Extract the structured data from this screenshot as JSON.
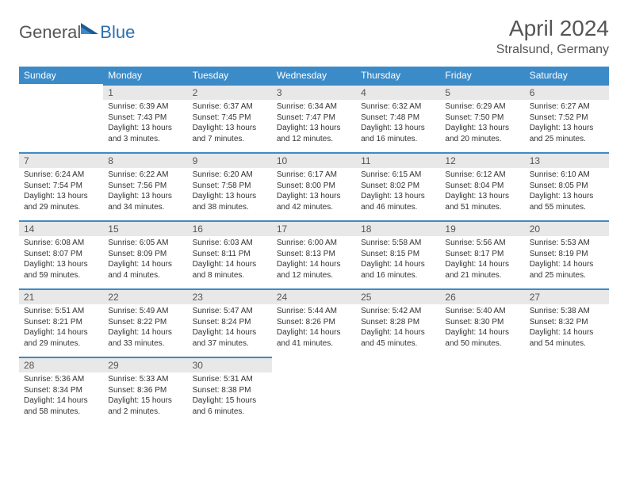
{
  "brand": {
    "part1": "General",
    "part2": "Blue"
  },
  "title": "April 2024",
  "subtitle": "Stralsund, Germany",
  "colors": {
    "header_bg": "#3b8bc9",
    "header_text": "#ffffff",
    "daynum_bg": "#e8e8e8",
    "daynum_border": "#3b8bc9",
    "text_muted": "#555555",
    "text_body": "#333333",
    "brand_blue": "#2b6fb0"
  },
  "day_headers": [
    "Sunday",
    "Monday",
    "Tuesday",
    "Wednesday",
    "Thursday",
    "Friday",
    "Saturday"
  ],
  "weeks": [
    [
      {
        "num": "",
        "lines": []
      },
      {
        "num": "1",
        "lines": [
          "Sunrise: 6:39 AM",
          "Sunset: 7:43 PM",
          "Daylight: 13 hours",
          "and 3 minutes."
        ]
      },
      {
        "num": "2",
        "lines": [
          "Sunrise: 6:37 AM",
          "Sunset: 7:45 PM",
          "Daylight: 13 hours",
          "and 7 minutes."
        ]
      },
      {
        "num": "3",
        "lines": [
          "Sunrise: 6:34 AM",
          "Sunset: 7:47 PM",
          "Daylight: 13 hours",
          "and 12 minutes."
        ]
      },
      {
        "num": "4",
        "lines": [
          "Sunrise: 6:32 AM",
          "Sunset: 7:48 PM",
          "Daylight: 13 hours",
          "and 16 minutes."
        ]
      },
      {
        "num": "5",
        "lines": [
          "Sunrise: 6:29 AM",
          "Sunset: 7:50 PM",
          "Daylight: 13 hours",
          "and 20 minutes."
        ]
      },
      {
        "num": "6",
        "lines": [
          "Sunrise: 6:27 AM",
          "Sunset: 7:52 PM",
          "Daylight: 13 hours",
          "and 25 minutes."
        ]
      }
    ],
    [
      {
        "num": "7",
        "lines": [
          "Sunrise: 6:24 AM",
          "Sunset: 7:54 PM",
          "Daylight: 13 hours",
          "and 29 minutes."
        ]
      },
      {
        "num": "8",
        "lines": [
          "Sunrise: 6:22 AM",
          "Sunset: 7:56 PM",
          "Daylight: 13 hours",
          "and 34 minutes."
        ]
      },
      {
        "num": "9",
        "lines": [
          "Sunrise: 6:20 AM",
          "Sunset: 7:58 PM",
          "Daylight: 13 hours",
          "and 38 minutes."
        ]
      },
      {
        "num": "10",
        "lines": [
          "Sunrise: 6:17 AM",
          "Sunset: 8:00 PM",
          "Daylight: 13 hours",
          "and 42 minutes."
        ]
      },
      {
        "num": "11",
        "lines": [
          "Sunrise: 6:15 AM",
          "Sunset: 8:02 PM",
          "Daylight: 13 hours",
          "and 46 minutes."
        ]
      },
      {
        "num": "12",
        "lines": [
          "Sunrise: 6:12 AM",
          "Sunset: 8:04 PM",
          "Daylight: 13 hours",
          "and 51 minutes."
        ]
      },
      {
        "num": "13",
        "lines": [
          "Sunrise: 6:10 AM",
          "Sunset: 8:05 PM",
          "Daylight: 13 hours",
          "and 55 minutes."
        ]
      }
    ],
    [
      {
        "num": "14",
        "lines": [
          "Sunrise: 6:08 AM",
          "Sunset: 8:07 PM",
          "Daylight: 13 hours",
          "and 59 minutes."
        ]
      },
      {
        "num": "15",
        "lines": [
          "Sunrise: 6:05 AM",
          "Sunset: 8:09 PM",
          "Daylight: 14 hours",
          "and 4 minutes."
        ]
      },
      {
        "num": "16",
        "lines": [
          "Sunrise: 6:03 AM",
          "Sunset: 8:11 PM",
          "Daylight: 14 hours",
          "and 8 minutes."
        ]
      },
      {
        "num": "17",
        "lines": [
          "Sunrise: 6:00 AM",
          "Sunset: 8:13 PM",
          "Daylight: 14 hours",
          "and 12 minutes."
        ]
      },
      {
        "num": "18",
        "lines": [
          "Sunrise: 5:58 AM",
          "Sunset: 8:15 PM",
          "Daylight: 14 hours",
          "and 16 minutes."
        ]
      },
      {
        "num": "19",
        "lines": [
          "Sunrise: 5:56 AM",
          "Sunset: 8:17 PM",
          "Daylight: 14 hours",
          "and 21 minutes."
        ]
      },
      {
        "num": "20",
        "lines": [
          "Sunrise: 5:53 AM",
          "Sunset: 8:19 PM",
          "Daylight: 14 hours",
          "and 25 minutes."
        ]
      }
    ],
    [
      {
        "num": "21",
        "lines": [
          "Sunrise: 5:51 AM",
          "Sunset: 8:21 PM",
          "Daylight: 14 hours",
          "and 29 minutes."
        ]
      },
      {
        "num": "22",
        "lines": [
          "Sunrise: 5:49 AM",
          "Sunset: 8:22 PM",
          "Daylight: 14 hours",
          "and 33 minutes."
        ]
      },
      {
        "num": "23",
        "lines": [
          "Sunrise: 5:47 AM",
          "Sunset: 8:24 PM",
          "Daylight: 14 hours",
          "and 37 minutes."
        ]
      },
      {
        "num": "24",
        "lines": [
          "Sunrise: 5:44 AM",
          "Sunset: 8:26 PM",
          "Daylight: 14 hours",
          "and 41 minutes."
        ]
      },
      {
        "num": "25",
        "lines": [
          "Sunrise: 5:42 AM",
          "Sunset: 8:28 PM",
          "Daylight: 14 hours",
          "and 45 minutes."
        ]
      },
      {
        "num": "26",
        "lines": [
          "Sunrise: 5:40 AM",
          "Sunset: 8:30 PM",
          "Daylight: 14 hours",
          "and 50 minutes."
        ]
      },
      {
        "num": "27",
        "lines": [
          "Sunrise: 5:38 AM",
          "Sunset: 8:32 PM",
          "Daylight: 14 hours",
          "and 54 minutes."
        ]
      }
    ],
    [
      {
        "num": "28",
        "lines": [
          "Sunrise: 5:36 AM",
          "Sunset: 8:34 PM",
          "Daylight: 14 hours",
          "and 58 minutes."
        ]
      },
      {
        "num": "29",
        "lines": [
          "Sunrise: 5:33 AM",
          "Sunset: 8:36 PM",
          "Daylight: 15 hours",
          "and 2 minutes."
        ]
      },
      {
        "num": "30",
        "lines": [
          "Sunrise: 5:31 AM",
          "Sunset: 8:38 PM",
          "Daylight: 15 hours",
          "and 6 minutes."
        ]
      },
      {
        "num": "",
        "lines": []
      },
      {
        "num": "",
        "lines": []
      },
      {
        "num": "",
        "lines": []
      },
      {
        "num": "",
        "lines": []
      }
    ]
  ]
}
